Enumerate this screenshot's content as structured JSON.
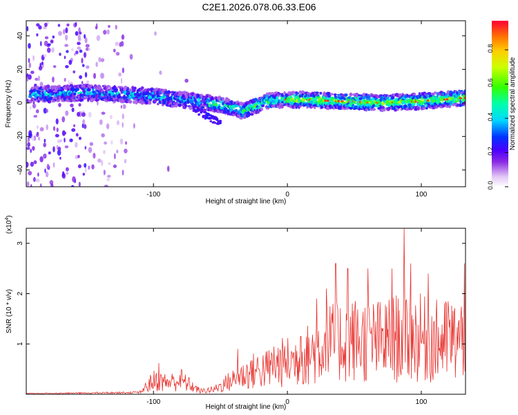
{
  "title": "C2E1.2026.078.06.33.E06",
  "chart_data": [
    {
      "type": "heatmap",
      "xlabel": "Height of straight line (km)",
      "ylabel": "Frequency (Hz)",
      "xlim": [
        -195,
        133
      ],
      "ylim": [
        -50,
        49
      ],
      "xticks": [
        -100,
        0,
        100
      ],
      "yticks": [
        -40,
        -20,
        0,
        20,
        40
      ],
      "colorbar": {
        "label": "Normalized spectral amplitude",
        "range": [
          0,
          0.97
        ],
        "ticks": [
          "0.0",
          "0.2",
          "0.4",
          "0.6",
          "0.8"
        ],
        "tick_values": [
          0.0,
          0.2,
          0.4,
          0.6,
          0.8
        ]
      },
      "ridge": {
        "description_points_x": [
          -190,
          -150,
          -120,
          -100,
          -80,
          -60,
          -50,
          -40,
          -33,
          -25,
          -15,
          -5,
          10,
          40,
          70,
          100,
          133
        ],
        "description_points_y": [
          5,
          6,
          5,
          4,
          2,
          0,
          -1,
          -3,
          -5,
          -2,
          1,
          2,
          2,
          1,
          0,
          1,
          3
        ],
        "branch_x": [
          -70,
          -60,
          -50
        ],
        "branch_y": [
          -3,
          -8,
          -12
        ]
      }
    },
    {
      "type": "line",
      "xlabel": "Height of straight line (km)",
      "ylabel": "SNR (10 * v/v)",
      "multiplier": "(x10",
      "multiplier_exp": "4",
      "multiplier_close": ")",
      "xlim": [
        -195,
        133
      ],
      "ylim": [
        0,
        3.3
      ],
      "xticks": [
        -100,
        0,
        100
      ],
      "yticks": [
        1,
        2,
        3
      ],
      "color": "#e8322e",
      "envelope_x": [
        -195,
        -110,
        -100,
        -90,
        -80,
        -75,
        -65,
        -55,
        -45,
        -35,
        -25,
        -15,
        -5,
        5,
        15,
        30,
        50,
        70,
        90,
        110,
        133
      ],
      "envelope_y": [
        0.02,
        0.05,
        0.35,
        0.3,
        0.35,
        0.28,
        0.08,
        0.12,
        0.3,
        0.45,
        0.6,
        0.65,
        0.8,
        0.85,
        1.0,
        1.3,
        1.4,
        1.35,
        1.5,
        1.35,
        1.4
      ],
      "peaks": [
        {
          "x": -96,
          "y": 0.62
        },
        {
          "x": -79,
          "y": 0.5
        },
        {
          "x": -37,
          "y": 0.9
        },
        {
          "x": -10,
          "y": 0.95
        },
        {
          "x": 10,
          "y": 1.15
        },
        {
          "x": 22,
          "y": 1.9
        },
        {
          "x": 29,
          "y": 2.1
        },
        {
          "x": 36,
          "y": 2.6
        },
        {
          "x": 45,
          "y": 2.5
        },
        {
          "x": 60,
          "y": 2.5
        },
        {
          "x": 78,
          "y": 2.5
        },
        {
          "x": 87,
          "y": 3.3
        },
        {
          "x": 92,
          "y": 2.6
        },
        {
          "x": 105,
          "y": 2.4
        },
        {
          "x": 120,
          "y": 1.85
        },
        {
          "x": 132,
          "y": 2.6
        }
      ]
    }
  ]
}
